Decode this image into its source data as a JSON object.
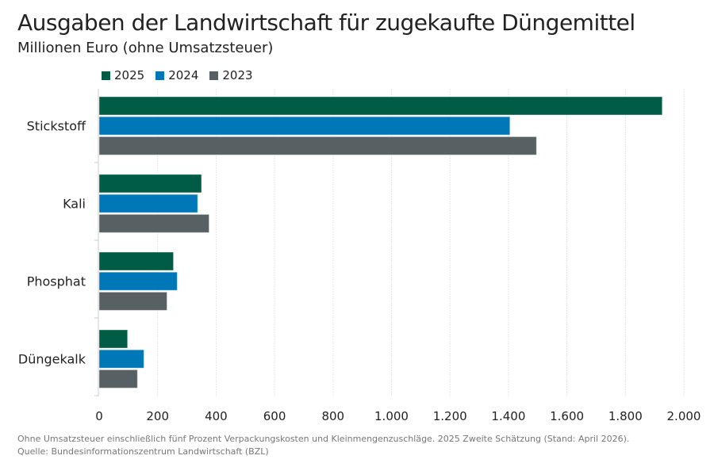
{
  "chart_data": {
    "type": "bar",
    "orientation": "horizontal",
    "title": "Ausgaben der Landwirtschaft für zugekaufte Düngemittel",
    "subtitle": "Millionen Euro (ohne Umsatzsteuer)",
    "categories": [
      "Stickstoff",
      "Kali",
      "Phosphat",
      "Düngekalk"
    ],
    "series": [
      {
        "name": "2025",
        "color": "#005C45",
        "values": [
          1926,
          350,
          254,
          97
        ]
      },
      {
        "name": "2024",
        "color": "#0077B6",
        "values": [
          1405,
          337,
          267,
          153
        ]
      },
      {
        "name": "2023",
        "color": "#576164",
        "values": [
          1496,
          376,
          232,
          131
        ]
      }
    ],
    "xlim": [
      0,
      2000
    ],
    "xticks": [
      0,
      200,
      400,
      600,
      800,
      1000,
      1200,
      1400,
      1600,
      1800,
      2000
    ],
    "xtick_labels": [
      "0",
      "200",
      "400",
      "600",
      "800",
      "1.000",
      "1.200",
      "1.400",
      "1.600",
      "1.800",
      "2.000"
    ],
    "grid": true,
    "legend_position": "top-left"
  },
  "footnote": "Ohne Umsatzsteuer einschließlich fünf Prozent Verpackungskosten und Kleinmengenzuschläge. 2025 Zweite Schätzung (Stand: April 2026).",
  "source": "Quelle: Bundesinformationszentrum Landwirtschaft (BZL)"
}
